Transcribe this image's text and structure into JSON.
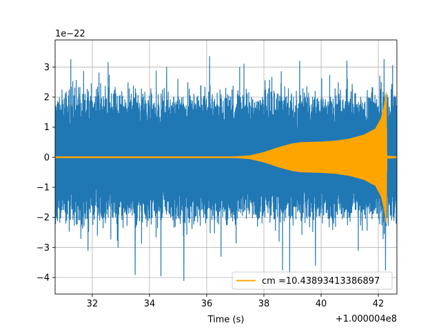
{
  "chart_data": {
    "type": "line",
    "xlabel": "Time (s)",
    "ylabel": "",
    "y_scale_label": "1e−22",
    "x_offset_label": "+1.000004e8",
    "xlim": [
      30.7,
      42.65
    ],
    "ylim": [
      -4.55,
      3.9
    ],
    "x_ticks": [
      32,
      34,
      36,
      38,
      40,
      42
    ],
    "x_tick_labels": [
      "32",
      "34",
      "36",
      "38",
      "40",
      "42"
    ],
    "y_ticks": [
      -4,
      -3,
      -2,
      -1,
      0,
      1,
      2,
      3
    ],
    "y_tick_labels": [
      "−4",
      "−3",
      "−2",
      "−1",
      "0",
      "1",
      "2",
      "3"
    ],
    "grid": true,
    "legend_position": "lower right",
    "series": [
      {
        "kind": "noise",
        "color": "#1f77b4",
        "x_range": [
          30.7,
          42.65
        ],
        "typical_envelope": 2.0,
        "y_max": 3.45,
        "y_min": -4.1,
        "spikes": [
          {
            "x": 31.25,
            "y": 3.25
          },
          {
            "x": 32.55,
            "y": 3.15
          },
          {
            "x": 34.6,
            "y": 3.0
          },
          {
            "x": 36.1,
            "y": 3.35
          },
          {
            "x": 37.3,
            "y": 3.1
          },
          {
            "x": 39.25,
            "y": 3.2
          },
          {
            "x": 40.9,
            "y": 3.2
          },
          {
            "x": 42.2,
            "y": 3.25
          },
          {
            "x": 42.5,
            "y": 3.05
          },
          {
            "x": 31.6,
            "y": -2.7
          },
          {
            "x": 31.85,
            "y": -3.1
          },
          {
            "x": 32.9,
            "y": -3.0
          },
          {
            "x": 33.5,
            "y": -3.9
          },
          {
            "x": 34.4,
            "y": -3.95
          },
          {
            "x": 35.2,
            "y": -4.1
          },
          {
            "x": 36.5,
            "y": -3.3
          },
          {
            "x": 38.65,
            "y": -3.75
          },
          {
            "x": 38.9,
            "y": -3.9
          },
          {
            "x": 39.8,
            "y": -3.6
          },
          {
            "x": 41.3,
            "y": -3.1
          },
          {
            "x": 42.25,
            "y": -3.75
          }
        ]
      },
      {
        "name": "cm =10.43893413386897",
        "kind": "chirp",
        "color": "#ffa500",
        "envelope": [
          {
            "x": 30.7,
            "y": 0.03
          },
          {
            "x": 37.0,
            "y": 0.03
          },
          {
            "x": 37.5,
            "y": 0.06
          },
          {
            "x": 38.0,
            "y": 0.17
          },
          {
            "x": 38.5,
            "y": 0.33
          },
          {
            "x": 39.0,
            "y": 0.46
          },
          {
            "x": 39.3,
            "y": 0.5
          },
          {
            "x": 40.0,
            "y": 0.52
          },
          {
            "x": 40.5,
            "y": 0.55
          },
          {
            "x": 41.0,
            "y": 0.62
          },
          {
            "x": 41.5,
            "y": 0.75
          },
          {
            "x": 41.9,
            "y": 0.95
          },
          {
            "x": 42.1,
            "y": 1.3
          },
          {
            "x": 42.2,
            "y": 1.7
          },
          {
            "x": 42.28,
            "y": 2.2
          },
          {
            "x": 42.3,
            "y": 0.05
          },
          {
            "x": 42.65,
            "y": 0.03
          }
        ]
      }
    ]
  }
}
